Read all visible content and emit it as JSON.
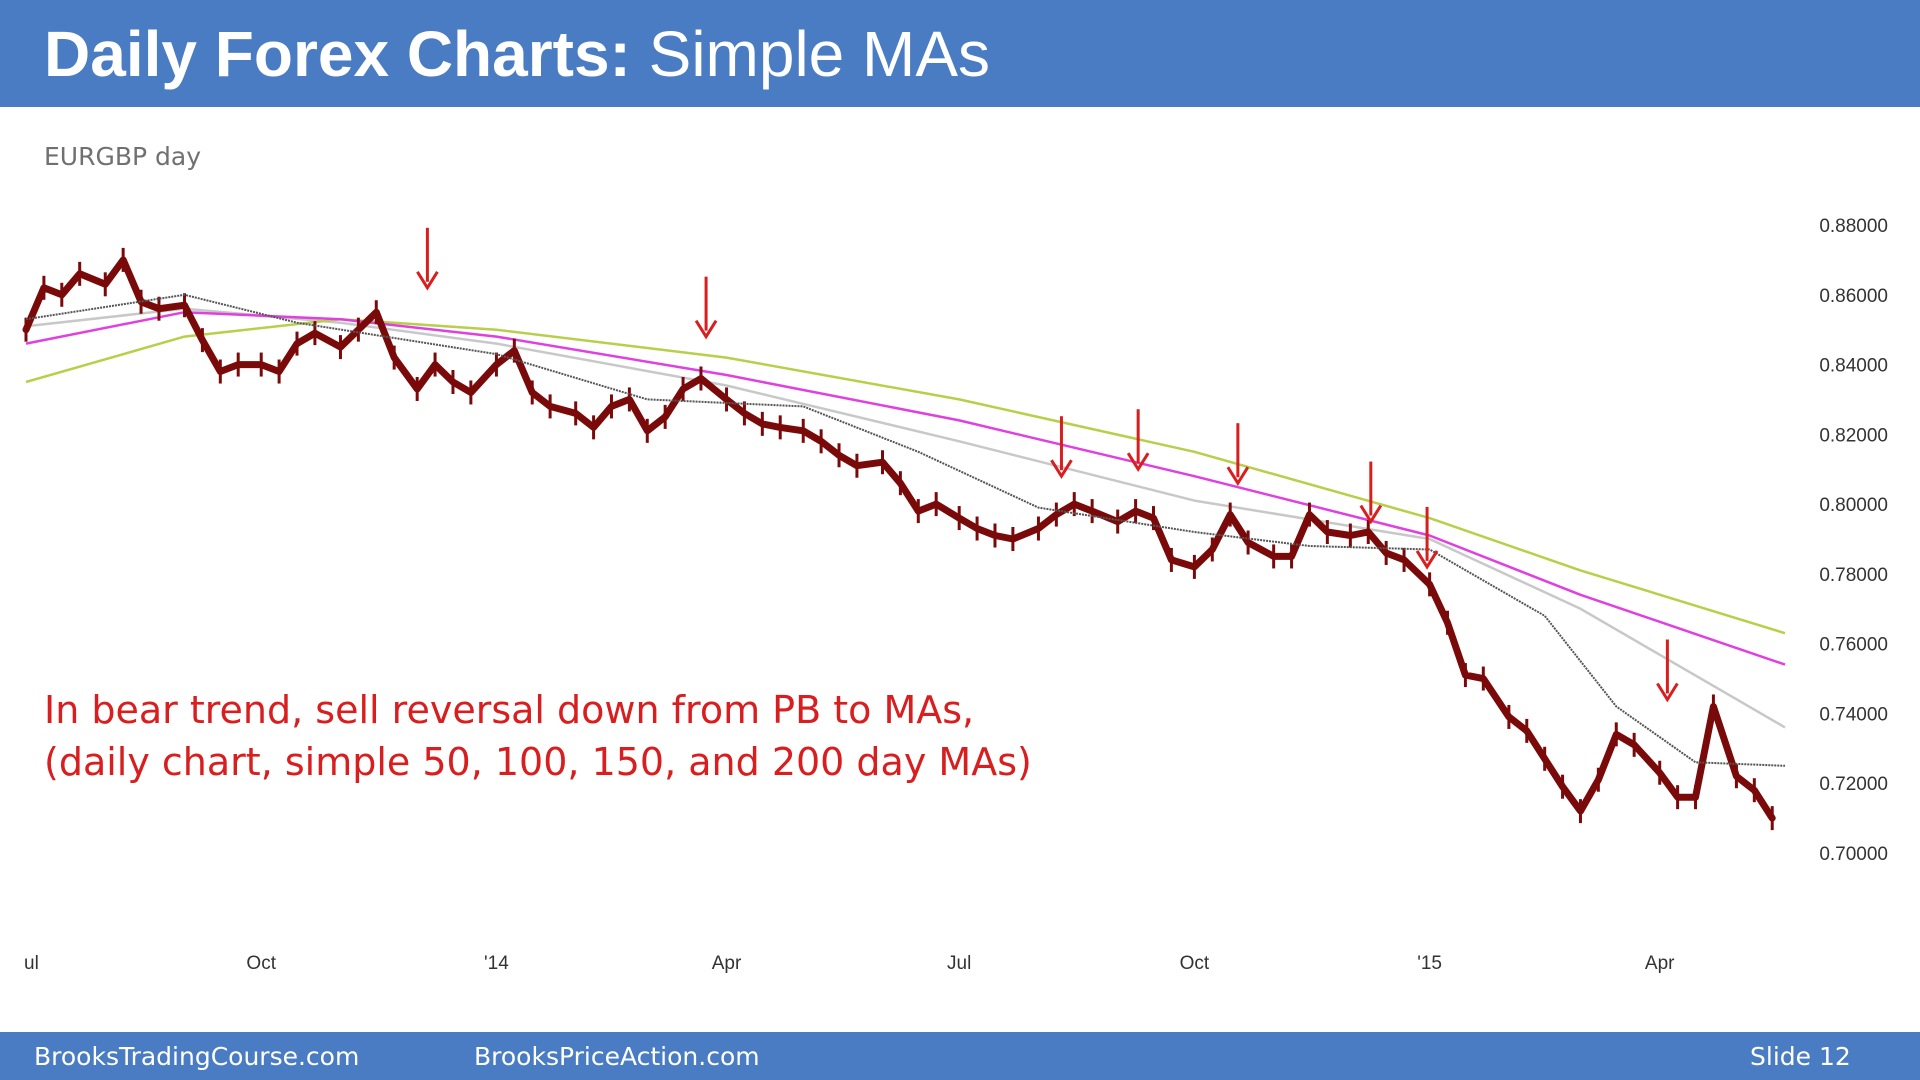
{
  "header": {
    "title_bold": "Daily Forex Charts:",
    "title_rest": "Simple MAs"
  },
  "chart_label": "EURGBP day",
  "annotation": {
    "line1": "In bear trend, sell reversal down from PB to MAs,",
    "line2": "(daily chart, simple 50, 100, 150, and 200 day MAs)"
  },
  "footer": {
    "left": "BrooksTradingCourse.com",
    "middle": "BrooksPriceAction.com",
    "right": "Slide  12"
  },
  "colors": {
    "header_bg": "#4a7cc4",
    "price": "#7a0a0a",
    "ma50": "#555555",
    "ma100": "#c8c8c8",
    "ma150": "#e040e0",
    "ma200": "#b8cf4a",
    "arrows": "#d81e1e"
  },
  "chart_data": {
    "type": "line",
    "title": "EURGBP day",
    "y_ticks": [
      "0.88000",
      "0.86000",
      "0.84000",
      "0.82000",
      "0.80000",
      "0.78000",
      "0.76000",
      "0.74000",
      "0.72000",
      "0.70000"
    ],
    "ylim": [
      0.7,
      0.88
    ],
    "y_axis_side": "right",
    "x_ticks": [
      {
        "label": "ul",
        "date": "2013-07-01"
      },
      {
        "label": "Oct",
        "date": "2013-10-01"
      },
      {
        "label": "'14",
        "date": "2014-01-01"
      },
      {
        "label": "Apr",
        "date": "2014-04-01"
      },
      {
        "label": "Jul",
        "date": "2014-07-01"
      },
      {
        "label": "Oct",
        "date": "2014-10-01"
      },
      {
        "label": "'15",
        "date": "2015-01-01"
      },
      {
        "label": "Apr",
        "date": "2015-04-01"
      }
    ],
    "xlim": [
      "2013-07-01",
      "2015-05-20"
    ],
    "grid": false,
    "legend": "none",
    "series": [
      {
        "type": "bars",
        "points": [
          [
            "2013-07-01",
            0.85
          ],
          [
            "2013-07-08",
            0.862
          ],
          [
            "2013-07-15",
            0.86
          ],
          [
            "2013-07-22",
            0.866
          ],
          [
            "2013-08-01",
            0.863
          ],
          [
            "2013-08-08",
            0.87
          ],
          [
            "2013-08-15",
            0.858
          ],
          [
            "2013-08-22",
            0.856
          ],
          [
            "2013-09-01",
            0.857
          ],
          [
            "2013-09-08",
            0.847
          ],
          [
            "2013-09-15",
            0.838
          ],
          [
            "2013-09-22",
            0.84
          ],
          [
            "2013-10-01",
            0.84
          ],
          [
            "2013-10-08",
            0.838
          ],
          [
            "2013-10-15",
            0.846
          ],
          [
            "2013-10-22",
            0.849
          ],
          [
            "2013-11-01",
            0.845
          ],
          [
            "2013-11-08",
            0.85
          ],
          [
            "2013-11-15",
            0.855
          ],
          [
            "2013-11-22",
            0.842
          ],
          [
            "2013-12-01",
            0.833
          ],
          [
            "2013-12-08",
            0.84
          ],
          [
            "2013-12-15",
            0.835
          ],
          [
            "2013-12-22",
            0.832
          ],
          [
            "2014-01-01",
            0.84
          ],
          [
            "2014-01-08",
            0.844
          ],
          [
            "2014-01-15",
            0.832
          ],
          [
            "2014-01-22",
            0.828
          ],
          [
            "2014-02-01",
            0.826
          ],
          [
            "2014-02-08",
            0.822
          ],
          [
            "2014-02-15",
            0.828
          ],
          [
            "2014-02-22",
            0.83
          ],
          [
            "2014-03-01",
            0.821
          ],
          [
            "2014-03-08",
            0.825
          ],
          [
            "2014-03-15",
            0.833
          ],
          [
            "2014-03-22",
            0.836
          ],
          [
            "2014-04-01",
            0.83
          ],
          [
            "2014-04-08",
            0.826
          ],
          [
            "2014-04-15",
            0.823
          ],
          [
            "2014-04-22",
            0.822
          ],
          [
            "2014-05-01",
            0.821
          ],
          [
            "2014-05-08",
            0.818
          ],
          [
            "2014-05-15",
            0.814
          ],
          [
            "2014-05-22",
            0.811
          ],
          [
            "2014-06-01",
            0.812
          ],
          [
            "2014-06-08",
            0.806
          ],
          [
            "2014-06-15",
            0.798
          ],
          [
            "2014-06-22",
            0.8
          ],
          [
            "2014-07-01",
            0.796
          ],
          [
            "2014-07-08",
            0.793
          ],
          [
            "2014-07-15",
            0.791
          ],
          [
            "2014-07-22",
            0.79
          ],
          [
            "2014-08-01",
            0.793
          ],
          [
            "2014-08-08",
            0.797
          ],
          [
            "2014-08-15",
            0.8
          ],
          [
            "2014-08-22",
            0.798
          ],
          [
            "2014-09-01",
            0.795
          ],
          [
            "2014-09-08",
            0.798
          ],
          [
            "2014-09-15",
            0.796
          ],
          [
            "2014-09-22",
            0.784
          ],
          [
            "2014-10-01",
            0.782
          ],
          [
            "2014-10-08",
            0.787
          ],
          [
            "2014-10-15",
            0.797
          ],
          [
            "2014-10-22",
            0.789
          ],
          [
            "2014-11-01",
            0.785
          ],
          [
            "2014-11-08",
            0.785
          ],
          [
            "2014-11-15",
            0.797
          ],
          [
            "2014-11-22",
            0.792
          ],
          [
            "2014-12-01",
            0.791
          ],
          [
            "2014-12-08",
            0.792
          ],
          [
            "2014-12-15",
            0.786
          ],
          [
            "2014-12-22",
            0.784
          ],
          [
            "2015-01-01",
            0.777
          ],
          [
            "2015-01-08",
            0.766
          ],
          [
            "2015-01-15",
            0.751
          ],
          [
            "2015-01-22",
            0.75
          ],
          [
            "2015-02-01",
            0.739
          ],
          [
            "2015-02-08",
            0.735
          ],
          [
            "2015-02-15",
            0.727
          ],
          [
            "2015-02-22",
            0.719
          ],
          [
            "2015-03-01",
            0.712
          ],
          [
            "2015-03-08",
            0.721
          ],
          [
            "2015-03-15",
            0.734
          ],
          [
            "2015-03-22",
            0.731
          ],
          [
            "2015-04-01",
            0.723
          ],
          [
            "2015-04-08",
            0.716
          ],
          [
            "2015-04-15",
            0.716
          ],
          [
            "2015-04-22",
            0.742
          ],
          [
            "2015-05-01",
            0.722
          ],
          [
            "2015-05-08",
            0.718
          ],
          [
            "2015-05-15",
            0.71
          ]
        ]
      },
      {
        "type": "line",
        "ma": "50",
        "points": [
          [
            "2013-07-01",
            0.853
          ],
          [
            "2013-09-01",
            0.86
          ],
          [
            "2013-10-15",
            0.852
          ],
          [
            "2014-01-01",
            0.843
          ],
          [
            "2014-03-01",
            0.83
          ],
          [
            "2014-05-01",
            0.828
          ],
          [
            "2014-06-15",
            0.815
          ],
          [
            "2014-08-01",
            0.799
          ],
          [
            "2014-10-01",
            0.792
          ],
          [
            "2014-11-15",
            0.788
          ],
          [
            "2015-01-01",
            0.787
          ],
          [
            "2015-02-15",
            0.768
          ],
          [
            "2015-03-15",
            0.742
          ],
          [
            "2015-04-15",
            0.726
          ],
          [
            "2015-05-20",
            0.725
          ]
        ]
      },
      {
        "type": "line",
        "ma": "100",
        "points": [
          [
            "2013-07-01",
            0.851
          ],
          [
            "2013-09-01",
            0.856
          ],
          [
            "2013-11-01",
            0.852
          ],
          [
            "2014-01-01",
            0.846
          ],
          [
            "2014-04-01",
            0.834
          ],
          [
            "2014-07-01",
            0.818
          ],
          [
            "2014-10-01",
            0.801
          ],
          [
            "2015-01-01",
            0.79
          ],
          [
            "2015-03-01",
            0.77
          ],
          [
            "2015-05-20",
            0.736
          ]
        ]
      },
      {
        "type": "line",
        "ma": "150",
        "points": [
          [
            "2013-07-01",
            0.846
          ],
          [
            "2013-09-01",
            0.855
          ],
          [
            "2013-11-01",
            0.853
          ],
          [
            "2014-01-01",
            0.848
          ],
          [
            "2014-04-01",
            0.837
          ],
          [
            "2014-07-01",
            0.824
          ],
          [
            "2014-10-01",
            0.808
          ],
          [
            "2015-01-01",
            0.791
          ],
          [
            "2015-03-01",
            0.774
          ],
          [
            "2015-05-20",
            0.754
          ]
        ]
      },
      {
        "type": "line",
        "ma": "200",
        "points": [
          [
            "2013-07-01",
            0.835
          ],
          [
            "2013-09-01",
            0.848
          ],
          [
            "2013-11-01",
            0.853
          ],
          [
            "2014-01-01",
            0.85
          ],
          [
            "2014-04-01",
            0.842
          ],
          [
            "2014-07-01",
            0.83
          ],
          [
            "2014-10-01",
            0.815
          ],
          [
            "2015-01-01",
            0.796
          ],
          [
            "2015-03-01",
            0.781
          ],
          [
            "2015-05-20",
            0.763
          ]
        ]
      }
    ],
    "annotations": [
      {
        "type": "arrow-down",
        "date": "2013-12-05",
        "value": 0.862
      },
      {
        "type": "arrow-down",
        "date": "2014-03-24",
        "value": 0.848
      },
      {
        "type": "arrow-down",
        "date": "2014-08-10",
        "value": 0.808
      },
      {
        "type": "arrow-down",
        "date": "2014-09-09",
        "value": 0.81
      },
      {
        "type": "arrow-down",
        "date": "2014-10-18",
        "value": 0.806
      },
      {
        "type": "arrow-down",
        "date": "2014-12-09",
        "value": 0.795
      },
      {
        "type": "arrow-down",
        "date": "2014-12-31",
        "value": 0.782
      },
      {
        "type": "arrow-down",
        "date": "2015-04-04",
        "value": 0.744
      }
    ]
  }
}
